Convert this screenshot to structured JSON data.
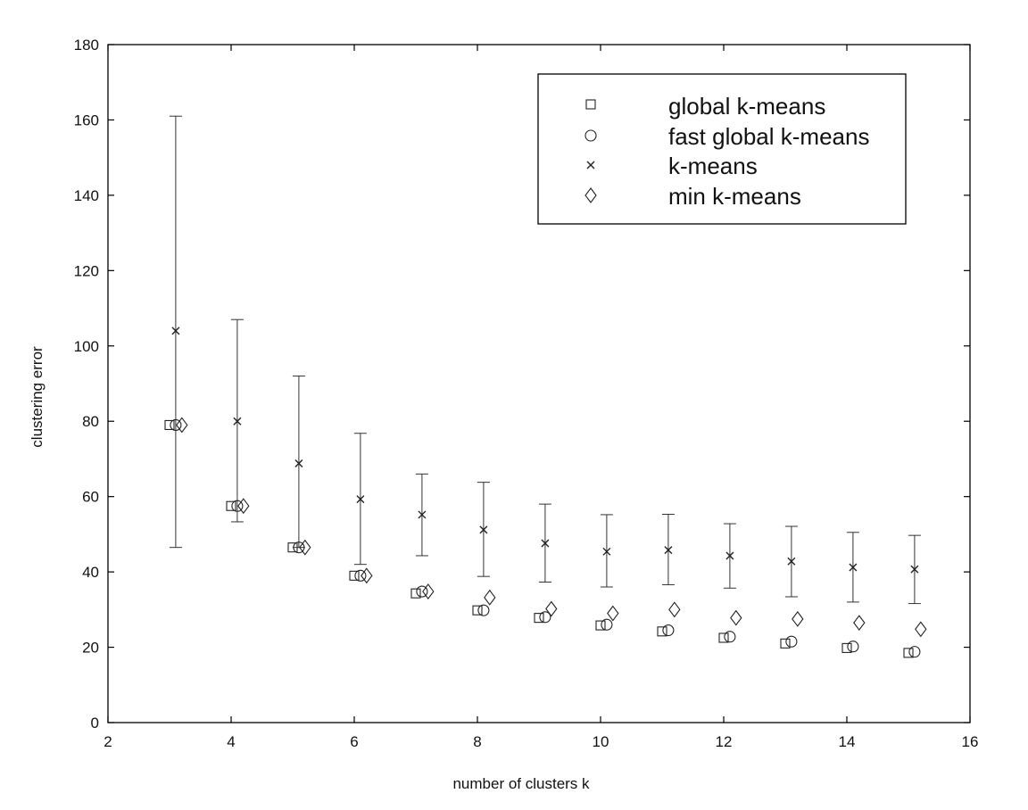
{
  "chart_data": {
    "type": "scatter",
    "title": "",
    "xlabel": "number of clusters k",
    "ylabel": "clustering error",
    "xlim": [
      2,
      16
    ],
    "ylim": [
      0,
      180
    ],
    "xticks": [
      "2",
      "4",
      "6",
      "8",
      "10",
      "12",
      "14",
      "16"
    ],
    "yticks": [
      "0",
      "20",
      "40",
      "60",
      "80",
      "100",
      "120",
      "140",
      "160",
      "180"
    ],
    "grid": false,
    "legend_position": "top-right",
    "series": [
      {
        "name": "global k-means",
        "marker": "square",
        "points": [
          {
            "x": 3,
            "y": 79
          },
          {
            "x": 4,
            "y": 57.5
          },
          {
            "x": 5,
            "y": 46.5
          },
          {
            "x": 6,
            "y": 39
          },
          {
            "x": 7,
            "y": 34.3
          },
          {
            "x": 8,
            "y": 29.8
          },
          {
            "x": 9,
            "y": 27.8
          },
          {
            "x": 10,
            "y": 25.8
          },
          {
            "x": 11,
            "y": 24.2
          },
          {
            "x": 12,
            "y": 22.5
          },
          {
            "x": 13,
            "y": 21
          },
          {
            "x": 14,
            "y": 19.8
          },
          {
            "x": 15,
            "y": 18.5
          }
        ]
      },
      {
        "name": "fast global k-means",
        "marker": "circle",
        "points": [
          {
            "x": 3.1,
            "y": 79
          },
          {
            "x": 4.1,
            "y": 57.5
          },
          {
            "x": 5.1,
            "y": 46.5
          },
          {
            "x": 6.1,
            "y": 39
          },
          {
            "x": 7.1,
            "y": 34.8
          },
          {
            "x": 8.1,
            "y": 29.8
          },
          {
            "x": 9.1,
            "y": 28
          },
          {
            "x": 10.1,
            "y": 26
          },
          {
            "x": 11.1,
            "y": 24.5
          },
          {
            "x": 12.1,
            "y": 22.8
          },
          {
            "x": 13.1,
            "y": 21.5
          },
          {
            "x": 14.1,
            "y": 20.2
          },
          {
            "x": 15.1,
            "y": 18.8
          }
        ]
      },
      {
        "name": "k-means",
        "marker": "x",
        "points": [
          {
            "x": 3.1,
            "y": 104,
            "low": 46.5,
            "high": 161
          },
          {
            "x": 4.1,
            "y": 80,
            "low": 53.3,
            "high": 107
          },
          {
            "x": 5.1,
            "y": 68.8,
            "low": 46.5,
            "high": 92
          },
          {
            "x": 6.1,
            "y": 59.3,
            "low": 42,
            "high": 76.8
          },
          {
            "x": 7.1,
            "y": 55.2,
            "low": 44.3,
            "high": 66
          },
          {
            "x": 8.1,
            "y": 51.2,
            "low": 38.8,
            "high": 63.8
          },
          {
            "x": 9.1,
            "y": 47.6,
            "low": 37.3,
            "high": 58
          },
          {
            "x": 10.1,
            "y": 45.4,
            "low": 36,
            "high": 55.2
          },
          {
            "x": 11.1,
            "y": 45.8,
            "low": 36.6,
            "high": 55.3
          },
          {
            "x": 12.1,
            "y": 44.3,
            "low": 35.7,
            "high": 52.8
          },
          {
            "x": 13.1,
            "y": 42.8,
            "low": 33.4,
            "high": 52.1
          },
          {
            "x": 14.1,
            "y": 41.2,
            "low": 32,
            "high": 50.5
          },
          {
            "x": 15.1,
            "y": 40.7,
            "low": 31.6,
            "high": 49.7
          }
        ]
      },
      {
        "name": "min k-means",
        "marker": "diamond",
        "points": [
          {
            "x": 3.2,
            "y": 79
          },
          {
            "x": 4.2,
            "y": 57.5
          },
          {
            "x": 5.2,
            "y": 46.5
          },
          {
            "x": 6.2,
            "y": 39
          },
          {
            "x": 7.2,
            "y": 34.8
          },
          {
            "x": 8.2,
            "y": 33.2
          },
          {
            "x": 9.2,
            "y": 30.2
          },
          {
            "x": 10.2,
            "y": 29
          },
          {
            "x": 11.2,
            "y": 30
          },
          {
            "x": 12.2,
            "y": 27.8
          },
          {
            "x": 13.2,
            "y": 27.5
          },
          {
            "x": 14.2,
            "y": 26.5
          },
          {
            "x": 15.2,
            "y": 24.8
          }
        ]
      }
    ]
  }
}
